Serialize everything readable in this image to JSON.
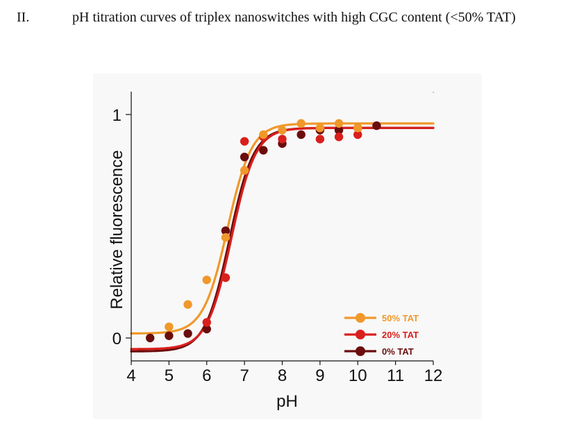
{
  "header": {
    "section": "II.",
    "title": "pH titration curves of triplex nanoswitches with high CGC content (<50% TAT)"
  },
  "chart_data": {
    "type": "scatter",
    "title": "",
    "xlabel": "pH",
    "ylabel": "Relative fluorescence",
    "xlim": [
      4,
      12
    ],
    "ylim": [
      -0.1,
      1.1
    ],
    "xticks": [
      "4",
      "5",
      "6",
      "7",
      "8",
      "9",
      "10",
      "11",
      "12"
    ],
    "yticks": [
      "0",
      "1"
    ],
    "grid": false,
    "legend_position": "bottom-right",
    "series": [
      {
        "name": "50% TAT",
        "color": "#f0982a",
        "x": [
          5.0,
          5.5,
          6.0,
          6.5,
          7.0,
          7.5,
          8.0,
          8.5,
          9.0,
          9.5,
          10.0
        ],
        "y": [
          0.05,
          0.15,
          0.26,
          0.45,
          0.75,
          0.91,
          0.93,
          0.96,
          0.94,
          0.96,
          0.94
        ],
        "fit": {
          "bottom": 0.02,
          "top": 0.96,
          "pka": 6.55,
          "slope": 0.32
        }
      },
      {
        "name": "20% TAT",
        "color": "#d91f1c",
        "x": [
          6.0,
          6.5,
          7.0,
          7.5,
          8.0,
          9.0,
          9.5,
          10.0
        ],
        "y": [
          0.07,
          0.27,
          0.88,
          0.9,
          0.89,
          0.89,
          0.9,
          0.91
        ],
        "fit": {
          "bottom": -0.05,
          "top": 0.94,
          "pka": 6.65,
          "slope": 0.32
        }
      },
      {
        "name": "0% TAT",
        "color": "#6b0d0d",
        "x": [
          4.5,
          5.0,
          5.5,
          6.0,
          6.5,
          7.0,
          7.5,
          8.0,
          8.5,
          9.0,
          9.5,
          10.0,
          10.5
        ],
        "y": [
          0.0,
          0.01,
          0.02,
          0.04,
          0.48,
          0.81,
          0.84,
          0.87,
          0.91,
          0.93,
          0.93,
          0.94,
          0.95
        ],
        "fit": {
          "bottom": -0.06,
          "top": 0.94,
          "pka": 6.6,
          "slope": 0.32
        }
      }
    ]
  }
}
